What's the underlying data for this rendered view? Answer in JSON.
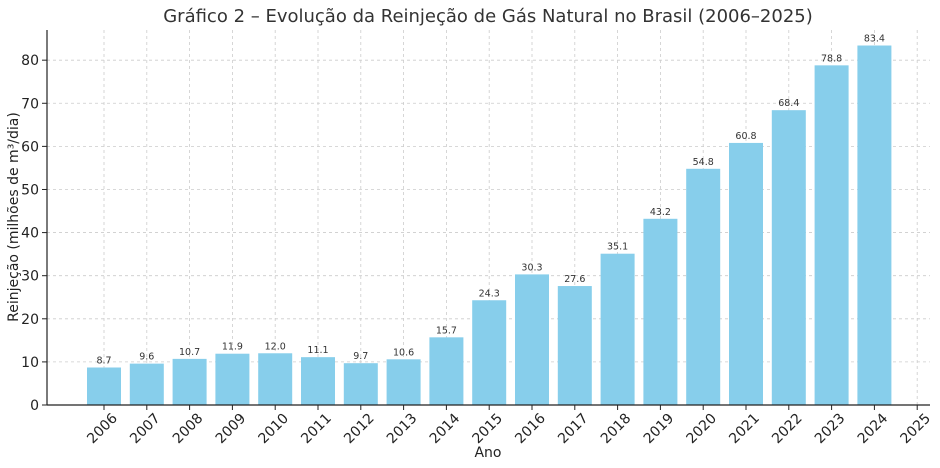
{
  "chart_data": {
    "type": "bar",
    "title": "Gráfico 2 – Evolução da Reinjeção de Gás Natural no Brasil (2006–2025)",
    "xlabel": "Ano",
    "ylabel": "Reinjeção (milhões de m³/dia)",
    "categories": [
      "2006",
      "2007",
      "2008",
      "2009",
      "2010",
      "2011",
      "2012",
      "2013",
      "2014",
      "2015",
      "2016",
      "2017",
      "2018",
      "2019",
      "2020",
      "2021",
      "2022",
      "2023",
      "2024",
      "2025"
    ],
    "values": [
      8.7,
      9.6,
      10.7,
      11.9,
      12.0,
      11.1,
      9.7,
      10.6,
      15.7,
      24.3,
      30.3,
      27.6,
      35.1,
      43.2,
      54.8,
      60.8,
      68.4,
      78.8,
      83.4,
      null
    ],
    "data_labels": [
      "8.7",
      "9.6",
      "10.7",
      "11.9",
      "12.0",
      "11.1",
      "9.7",
      "10.6",
      "15.7",
      "24.3",
      "30.3",
      "27.6",
      "35.1",
      "43.2",
      "54.8",
      "60.8",
      "68.4",
      "78.8",
      "83.4",
      ""
    ],
    "yticks": [
      0,
      10,
      20,
      30,
      40,
      50,
      60,
      70,
      80
    ],
    "ylim": [
      0,
      87
    ],
    "grid": true,
    "bar_color": "#87ceeb"
  }
}
